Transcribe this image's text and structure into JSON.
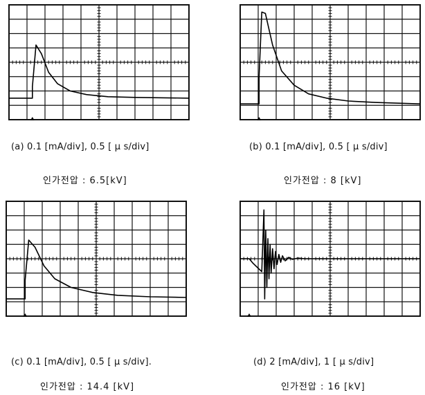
{
  "panels": [
    {
      "id": "a",
      "caption": "(a)  0.1 [mA/div], 0.5 [ μ s/div]",
      "voltage": "인가전압 :  6.5[kV]",
      "grid": {
        "x_divisions": 10,
        "y_divisions": 8
      },
      "cursor_markers": [
        "",
        "2"
      ]
    },
    {
      "id": "b",
      "caption": "(b)   0.1 [mA/div], 0.5 [ μ s/div]",
      "voltage": "인가전압 :  8 [kV]",
      "grid": {
        "x_divisions": 10,
        "y_divisions": 8
      },
      "cursor_markers": []
    },
    {
      "id": "c",
      "caption": "(c)  0.1 [mA/div], 0.5 [ μ s/div].",
      "voltage": "인가전압 : 14.4 [kV]",
      "grid": {
        "x_divisions": 10,
        "y_divisions": 8
      },
      "cursor_markers": []
    },
    {
      "id": "d",
      "caption": "(d)   2 [mA/div], 1 [ μ s/div]",
      "voltage": "인가전압 : 16 [kV]",
      "grid": {
        "x_divisions": 10,
        "y_divisions": 8
      },
      "cursor_markers": []
    }
  ],
  "chart_data": [
    {
      "type": "line",
      "panel": "a",
      "title": "",
      "xlabel": "",
      "ylabel": "",
      "x_unit_per_div": "0.5 μs",
      "y_unit_per_div": "0.1 mA",
      "xlim": [
        0,
        10
      ],
      "ylim": [
        0,
        8
      ],
      "grid": true,
      "series": [
        {
          "name": "",
          "x": [
            0,
            1.3,
            1.3,
            1.5,
            1.8,
            2.2,
            2.7,
            3.4,
            4.3,
            5.5,
            7.0,
            10.0
          ],
          "y": [
            1.5,
            1.5,
            2.3,
            5.2,
            4.6,
            3.3,
            2.5,
            2.0,
            1.75,
            1.6,
            1.55,
            1.5
          ]
        }
      ]
    },
    {
      "type": "line",
      "panel": "b",
      "title": "",
      "xlabel": "",
      "ylabel": "",
      "x_unit_per_div": "0.5 μs",
      "y_unit_per_div": "0.1 mA",
      "xlim": [
        0,
        10
      ],
      "ylim": [
        0,
        8
      ],
      "grid": true,
      "series": [
        {
          "name": "",
          "x": [
            0,
            1.05,
            1.05,
            1.2,
            1.4,
            1.8,
            2.3,
            3.0,
            3.8,
            4.8,
            6.0,
            7.5,
            10.0
          ],
          "y": [
            1.1,
            1.1,
            3.0,
            7.5,
            7.4,
            5.2,
            3.4,
            2.4,
            1.8,
            1.5,
            1.3,
            1.2,
            1.1
          ]
        }
      ]
    },
    {
      "type": "line",
      "panel": "c",
      "title": "",
      "xlabel": "",
      "ylabel": "",
      "x_unit_per_div": "0.5 μs",
      "y_unit_per_div": "0.1 mA",
      "xlim": [
        0,
        10
      ],
      "ylim": [
        0,
        8
      ],
      "grid": true,
      "series": [
        {
          "name": "",
          "x": [
            0,
            1.05,
            1.05,
            1.25,
            1.6,
            2.1,
            2.7,
            3.6,
            4.8,
            6.2,
            8.0,
            10.0
          ],
          "y": [
            1.2,
            1.2,
            2.5,
            5.3,
            4.8,
            3.5,
            2.6,
            2.0,
            1.65,
            1.45,
            1.35,
            1.3
          ]
        }
      ]
    },
    {
      "type": "line",
      "panel": "d",
      "title": "",
      "xlabel": "",
      "ylabel": "",
      "x_unit_per_div": "1 μs",
      "y_unit_per_div": "2 mA",
      "xlim": [
        0,
        10
      ],
      "ylim": [
        0,
        8
      ],
      "grid": true,
      "series": [
        {
          "name": "",
          "x": [
            0,
            0.5,
            0.7,
            0.95,
            1.2,
            1.32,
            1.36,
            1.42,
            1.48,
            1.54,
            1.6,
            1.66,
            1.72,
            1.8,
            1.88,
            1.96,
            2.05,
            2.15,
            2.25,
            2.35,
            2.5,
            2.7,
            2.9,
            3.2,
            3.6,
            4.5,
            10.0
          ],
          "y": [
            4.0,
            4.0,
            3.7,
            3.4,
            3.1,
            7.4,
            1.2,
            6.0,
            2.0,
            5.4,
            2.6,
            5.0,
            3.0,
            4.7,
            3.3,
            4.5,
            3.6,
            4.3,
            3.75,
            4.2,
            3.85,
            4.1,
            3.95,
            4.05,
            4.0,
            4.0,
            4.0
          ]
        }
      ]
    }
  ]
}
